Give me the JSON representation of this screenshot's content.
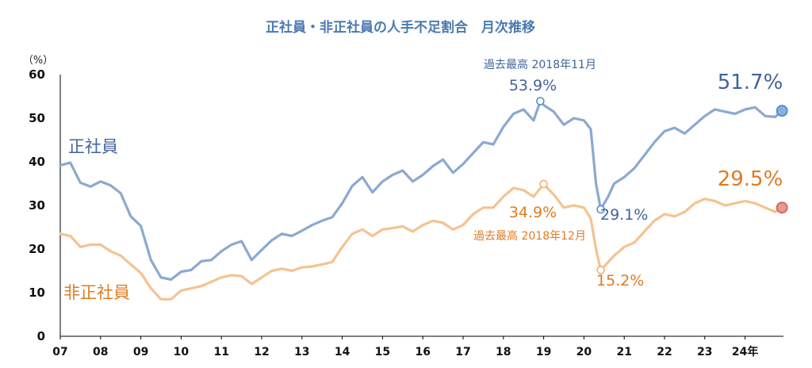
{
  "chart_data": {
    "type": "line",
    "title": "正社員・非正社員の人手不足割合　月次推移",
    "y_unit": "（%）",
    "ylim": [
      0,
      60
    ],
    "y_ticks": [
      "0",
      "10",
      "20",
      "30",
      "40",
      "50",
      "60"
    ],
    "x_ticks": [
      "07",
      "08",
      "09",
      "10",
      "11",
      "12",
      "13",
      "14",
      "15",
      "16",
      "17",
      "18",
      "19",
      "20",
      "21",
      "22",
      "23",
      "24年"
    ],
    "grid": false,
    "legend": "inline labels",
    "series": [
      {
        "name": "正社員",
        "color": "#8aa9d2",
        "points": [
          [
            2007.0,
            39.2
          ],
          [
            2007.25,
            39.8
          ],
          [
            2007.5,
            35.2
          ],
          [
            2007.75,
            34.3
          ],
          [
            2008.0,
            35.5
          ],
          [
            2008.25,
            34.6
          ],
          [
            2008.5,
            32.8
          ],
          [
            2008.75,
            27.5
          ],
          [
            2009.0,
            25.3
          ],
          [
            2009.25,
            17.5
          ],
          [
            2009.5,
            13.5
          ],
          [
            2009.75,
            13.0
          ],
          [
            2010.0,
            14.8
          ],
          [
            2010.25,
            15.2
          ],
          [
            2010.5,
            17.2
          ],
          [
            2010.75,
            17.5
          ],
          [
            2011.0,
            19.5
          ],
          [
            2011.25,
            21.0
          ],
          [
            2011.5,
            21.8
          ],
          [
            2011.75,
            17.5
          ],
          [
            2012.0,
            19.8
          ],
          [
            2012.25,
            22.0
          ],
          [
            2012.5,
            23.5
          ],
          [
            2012.75,
            23.0
          ],
          [
            2013.0,
            24.2
          ],
          [
            2013.25,
            25.5
          ],
          [
            2013.5,
            26.5
          ],
          [
            2013.75,
            27.3
          ],
          [
            2014.0,
            30.5
          ],
          [
            2014.25,
            34.5
          ],
          [
            2014.5,
            36.5
          ],
          [
            2014.75,
            33.0
          ],
          [
            2015.0,
            35.5
          ],
          [
            2015.25,
            37.0
          ],
          [
            2015.5,
            38.0
          ],
          [
            2015.75,
            35.5
          ],
          [
            2016.0,
            37.0
          ],
          [
            2016.25,
            39.0
          ],
          [
            2016.5,
            40.5
          ],
          [
            2016.75,
            37.5
          ],
          [
            2017.0,
            39.5
          ],
          [
            2017.25,
            42.0
          ],
          [
            2017.5,
            44.5
          ],
          [
            2017.75,
            44.0
          ],
          [
            2018.0,
            48.0
          ],
          [
            2018.25,
            51.0
          ],
          [
            2018.5,
            52.0
          ],
          [
            2018.75,
            49.5
          ],
          [
            2018.917,
            53.9
          ],
          [
            2019.0,
            53.0
          ],
          [
            2019.25,
            51.5
          ],
          [
            2019.5,
            48.5
          ],
          [
            2019.75,
            50.0
          ],
          [
            2020.0,
            49.5
          ],
          [
            2020.17,
            47.5
          ],
          [
            2020.3,
            35.0
          ],
          [
            2020.417,
            29.1
          ],
          [
            2020.6,
            32.0
          ],
          [
            2020.75,
            35.0
          ],
          [
            2021.0,
            36.5
          ],
          [
            2021.25,
            38.5
          ],
          [
            2021.5,
            41.5
          ],
          [
            2021.75,
            44.5
          ],
          [
            2022.0,
            47.0
          ],
          [
            2022.25,
            47.8
          ],
          [
            2022.5,
            46.5
          ],
          [
            2022.75,
            48.5
          ],
          [
            2023.0,
            50.5
          ],
          [
            2023.25,
            52.0
          ],
          [
            2023.5,
            51.5
          ],
          [
            2023.75,
            51.0
          ],
          [
            2024.0,
            52.0
          ],
          [
            2024.25,
            52.5
          ],
          [
            2024.5,
            50.5
          ],
          [
            2024.75,
            50.3
          ],
          [
            2024.917,
            51.7
          ]
        ]
      },
      {
        "name": "非正社員",
        "color": "#f5c291",
        "points": [
          [
            2007.0,
            23.5
          ],
          [
            2007.25,
            23.0
          ],
          [
            2007.5,
            20.5
          ],
          [
            2007.75,
            21.0
          ],
          [
            2008.0,
            21.0
          ],
          [
            2008.25,
            19.5
          ],
          [
            2008.5,
            18.5
          ],
          [
            2008.75,
            16.5
          ],
          [
            2009.0,
            14.5
          ],
          [
            2009.25,
            11.0
          ],
          [
            2009.5,
            8.5
          ],
          [
            2009.75,
            8.5
          ],
          [
            2010.0,
            10.5
          ],
          [
            2010.25,
            11.0
          ],
          [
            2010.5,
            11.5
          ],
          [
            2010.75,
            12.5
          ],
          [
            2011.0,
            13.5
          ],
          [
            2011.25,
            14.0
          ],
          [
            2011.5,
            13.8
          ],
          [
            2011.75,
            12.0
          ],
          [
            2012.0,
            13.5
          ],
          [
            2012.25,
            15.0
          ],
          [
            2012.5,
            15.5
          ],
          [
            2012.75,
            15.0
          ],
          [
            2013.0,
            15.8
          ],
          [
            2013.25,
            16.0
          ],
          [
            2013.5,
            16.5
          ],
          [
            2013.75,
            17.0
          ],
          [
            2014.0,
            20.5
          ],
          [
            2014.25,
            23.5
          ],
          [
            2014.5,
            24.5
          ],
          [
            2014.75,
            23.0
          ],
          [
            2015.0,
            24.5
          ],
          [
            2015.25,
            24.8
          ],
          [
            2015.5,
            25.2
          ],
          [
            2015.75,
            24.0
          ],
          [
            2016.0,
            25.5
          ],
          [
            2016.25,
            26.5
          ],
          [
            2016.5,
            26.0
          ],
          [
            2016.75,
            24.5
          ],
          [
            2017.0,
            25.5
          ],
          [
            2017.25,
            28.0
          ],
          [
            2017.5,
            29.5
          ],
          [
            2017.75,
            29.5
          ],
          [
            2018.0,
            32.0
          ],
          [
            2018.25,
            34.0
          ],
          [
            2018.5,
            33.5
          ],
          [
            2018.75,
            32.0
          ],
          [
            2019.0,
            34.9
          ],
          [
            2019.25,
            32.5
          ],
          [
            2019.5,
            29.5
          ],
          [
            2019.75,
            30.0
          ],
          [
            2020.0,
            29.5
          ],
          [
            2020.17,
            27.0
          ],
          [
            2020.3,
            20.0
          ],
          [
            2020.417,
            15.2
          ],
          [
            2020.6,
            17.0
          ],
          [
            2020.75,
            18.5
          ],
          [
            2021.0,
            20.5
          ],
          [
            2021.25,
            21.5
          ],
          [
            2021.5,
            24.0
          ],
          [
            2021.75,
            26.5
          ],
          [
            2022.0,
            28.0
          ],
          [
            2022.25,
            27.5
          ],
          [
            2022.5,
            28.5
          ],
          [
            2022.75,
            30.5
          ],
          [
            2023.0,
            31.5
          ],
          [
            2023.25,
            31.0
          ],
          [
            2023.5,
            30.0
          ],
          [
            2023.75,
            30.5
          ],
          [
            2024.0,
            31.0
          ],
          [
            2024.25,
            30.5
          ],
          [
            2024.5,
            29.5
          ],
          [
            2024.75,
            28.5
          ],
          [
            2024.917,
            29.5
          ]
        ]
      }
    ],
    "annotations": [
      {
        "id": "blue_peak",
        "text": "53.9%",
        "note": "過去最高 2018年11月",
        "x": 2018.917,
        "y": 53.9,
        "series": "正社員"
      },
      {
        "id": "blue_low",
        "text": "29.1%",
        "x": 2020.417,
        "y": 29.1,
        "series": "正社員"
      },
      {
        "id": "blue_last",
        "text": "51.7%",
        "x": 2024.917,
        "y": 51.7,
        "series": "正社員"
      },
      {
        "id": "orange_peak",
        "text": "34.9%",
        "note": "過去最高 2018年12月",
        "x": 2019.0,
        "y": 34.9,
        "series": "非正社員"
      },
      {
        "id": "orange_low",
        "text": "15.2%",
        "x": 2020.417,
        "y": 15.2,
        "series": "非正社員"
      },
      {
        "id": "orange_last",
        "text": "29.5%",
        "x": 2024.917,
        "y": 29.5,
        "series": "非正社員"
      }
    ],
    "colors": {
      "blue_text": "#41639c",
      "orange_text": "#e07b22",
      "blue_marker": "#5b8fd0",
      "red_marker": "#d06a6a"
    }
  }
}
